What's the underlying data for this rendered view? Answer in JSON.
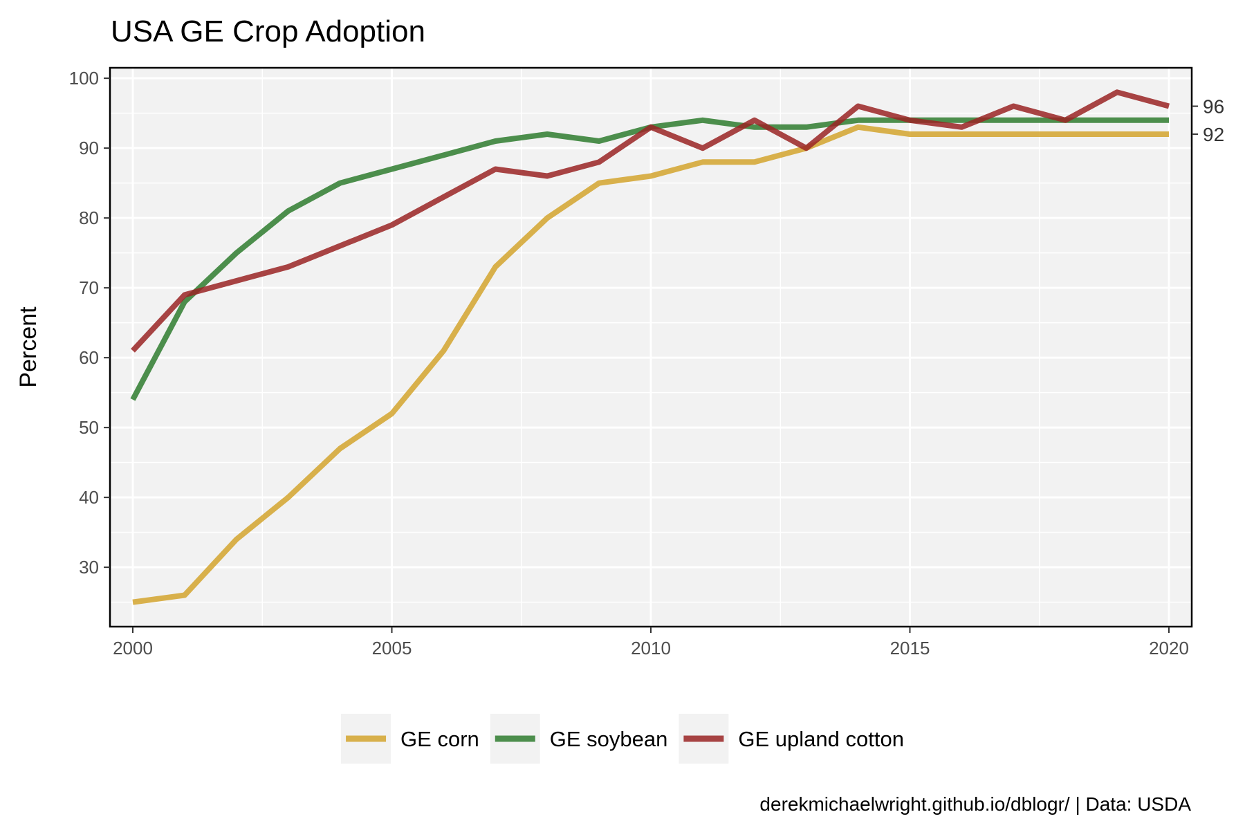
{
  "chart_data": {
    "type": "line",
    "title": "USA GE Crop Adoption",
    "xlabel": "",
    "ylabel": "Percent",
    "xlim": [
      2000,
      2020
    ],
    "ylim": [
      21.5,
      101.5
    ],
    "x_ticks": [
      "2000",
      "2005",
      "2010",
      "2015",
      "2020"
    ],
    "y_ticks": [
      "30",
      "40",
      "50",
      "60",
      "70",
      "80",
      "90",
      "100"
    ],
    "grid": true,
    "legend_position": "bottom",
    "x": [
      2000,
      2001,
      2002,
      2003,
      2004,
      2005,
      2006,
      2007,
      2008,
      2009,
      2010,
      2011,
      2012,
      2013,
      2014,
      2015,
      2016,
      2017,
      2018,
      2019,
      2020
    ],
    "series": [
      {
        "name": "GE corn",
        "color": "#d4a52e",
        "values": [
          25,
          26,
          34,
          40,
          47,
          52,
          61,
          73,
          80,
          85,
          86,
          88,
          88,
          90,
          93,
          92,
          92,
          92,
          92,
          92,
          92
        ]
      },
      {
        "name": "GE soybean",
        "color": "#2f7d2f",
        "values": [
          54,
          68,
          75,
          81,
          85,
          87,
          89,
          91,
          92,
          91,
          93,
          94,
          93,
          93,
          94,
          94,
          94,
          94,
          94,
          94,
          94
        ]
      },
      {
        "name": "GE upland cotton",
        "color": "#9a2525",
        "values": [
          61,
          69,
          71,
          73,
          76,
          79,
          83,
          87,
          86,
          88,
          93,
          90,
          94,
          90,
          96,
          94,
          93,
          96,
          94,
          98,
          96
        ]
      }
    ],
    "end_labels": [
      "96",
      "92"
    ],
    "caption": "derekmichaelwright.github.io/dblogr/ | Data: USDA"
  }
}
